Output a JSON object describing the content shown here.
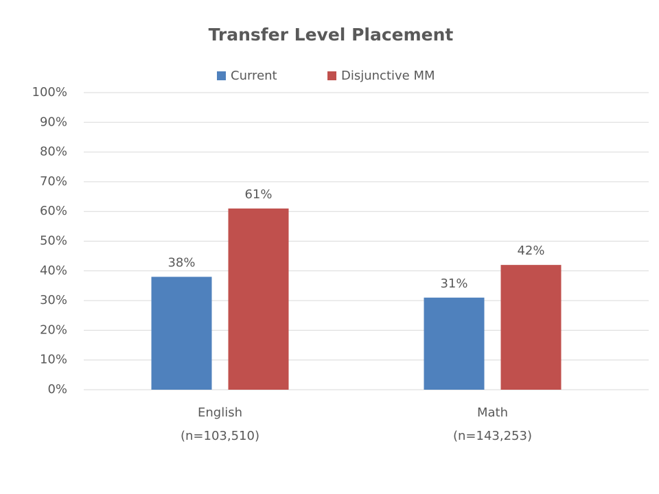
{
  "chart_data": {
    "type": "bar",
    "title": "Transfer Level Placement",
    "categories": [
      [
        "English",
        "(n=103,510)"
      ],
      [
        "Math",
        "(n=143,253)"
      ]
    ],
    "series": [
      {
        "name": "Current",
        "color": "#4f81bd",
        "values": [
          38,
          31
        ],
        "value_labels": [
          "38%",
          "31%"
        ]
      },
      {
        "name": "Disjunctive MM",
        "color": "#c0504d",
        "values": [
          61,
          42
        ],
        "value_labels": [
          "61%",
          "42%"
        ]
      }
    ],
    "ylim": [
      0,
      100
    ],
    "yticks": [
      {
        "value": 0,
        "label": "0%"
      },
      {
        "value": 10,
        "label": "10%"
      },
      {
        "value": 20,
        "label": "20%"
      },
      {
        "value": 30,
        "label": "30%"
      },
      {
        "value": 40,
        "label": "40%"
      },
      {
        "value": 50,
        "label": "50%"
      },
      {
        "value": 60,
        "label": "60%"
      },
      {
        "value": 70,
        "label": "70%"
      },
      {
        "value": 80,
        "label": "80%"
      },
      {
        "value": 90,
        "label": "90%"
      },
      {
        "value": 100,
        "label": "100%"
      }
    ],
    "grid": true,
    "legend": "top"
  }
}
